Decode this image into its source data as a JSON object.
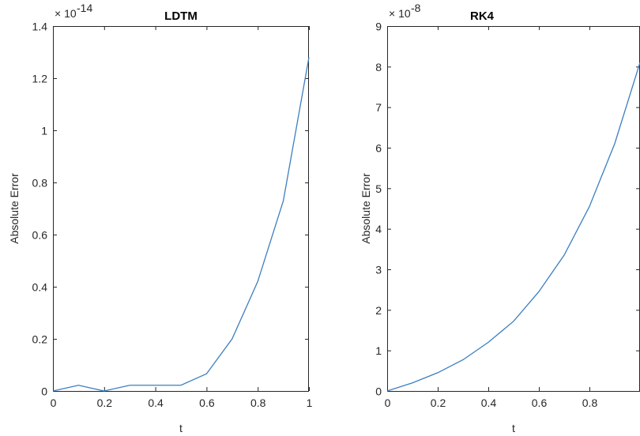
{
  "chart_data": [
    {
      "type": "line",
      "title": "LDTM",
      "x_label": "t",
      "y_label": "Absolute Error",
      "y_multiplier": "× 10",
      "y_exponent": "-14",
      "x": [
        0,
        0.1,
        0.2,
        0.3,
        0.4,
        0.5,
        0.6,
        0.7,
        0.8,
        0.9,
        1
      ],
      "values": [
        0,
        0.022,
        0,
        0.022,
        0.022,
        0.022,
        0.066,
        0.2,
        0.42,
        0.73,
        1.28
      ],
      "color": "#3b7fbf",
      "xlim": [
        0,
        1
      ],
      "xticks": [
        0,
        0.2,
        0.4,
        0.6,
        0.8,
        1
      ],
      "ylim": [
        0,
        1.4
      ],
      "yticks": [
        0,
        0.2,
        0.4,
        0.6,
        0.8,
        1,
        1.2,
        1.4
      ]
    },
    {
      "type": "line",
      "title": "RK4",
      "x_label": "t",
      "y_label": "Absolute Error",
      "y_multiplier": "× 10",
      "y_exponent": "-8",
      "x": [
        0,
        0.1,
        0.2,
        0.3,
        0.4,
        0.5,
        0.6,
        0.7,
        0.8,
        0.9,
        1
      ],
      "values": [
        0,
        0.2,
        0.45,
        0.77,
        1.2,
        1.72,
        2.45,
        3.35,
        4.55,
        6.1,
        8.1
      ],
      "color": "#3b7fbf",
      "xlim": [
        0,
        1
      ],
      "xticks": [
        0,
        0.2,
        0.4,
        0.6,
        0.8
      ],
      "ylim": [
        0,
        9
      ],
      "yticks": [
        0,
        1,
        2,
        3,
        4,
        5,
        6,
        7,
        8,
        9
      ]
    }
  ]
}
